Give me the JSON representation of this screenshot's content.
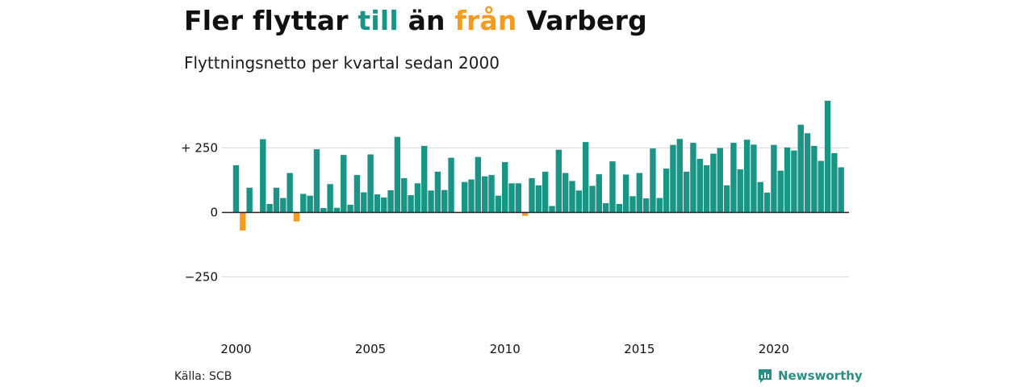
{
  "title": {
    "part1": "Fler flyttar ",
    "part2": "till",
    "part3": " än ",
    "part4": "från",
    "part5": " Varberg",
    "color_till": "#1a9485",
    "color_fran": "#f39c1f"
  },
  "subtitle": "Flyttningsnetto per kvartal sedan 2000",
  "source": "Källa: SCB",
  "brand": {
    "name": "Newsworthy",
    "icon": "newsworthy-logo-icon",
    "color": "#2a8e82"
  },
  "chart_data": {
    "type": "bar",
    "title": "Fler flyttar till än från Varberg",
    "subtitle": "Flyttningsnetto per kvartal sedan 2000",
    "xlabel": "",
    "ylabel": "",
    "start_year": 2000,
    "periods_per_year": 4,
    "ylim": [
      -330,
      440
    ],
    "yticks": [
      {
        "value": 250,
        "label": "+ 250"
      },
      {
        "value": 0,
        "label": "0"
      },
      {
        "value": -250,
        "label": "−250"
      }
    ],
    "xticks": [
      {
        "value": 2000,
        "label": "2000"
      },
      {
        "value": 2005,
        "label": "2005"
      },
      {
        "value": 2010,
        "label": "2010"
      },
      {
        "value": 2015,
        "label": "2015"
      },
      {
        "value": 2020,
        "label": "2020"
      }
    ],
    "grid": true,
    "positive_color": "#1a9485",
    "negative_color": "#f39c1f",
    "values": [
      183,
      -70,
      96,
      0,
      284,
      33,
      96,
      56,
      153,
      -35,
      72,
      65,
      245,
      17,
      110,
      18,
      223,
      30,
      145,
      78,
      225,
      70,
      58,
      86,
      293,
      133,
      67,
      113,
      258,
      85,
      158,
      87,
      212,
      0,
      118,
      128,
      215,
      140,
      145,
      65,
      195,
      113,
      113,
      -13,
      133,
      105,
      158,
      25,
      243,
      153,
      122,
      85,
      273,
      103,
      148,
      36,
      198,
      33,
      147,
      63,
      153,
      55,
      248,
      56,
      170,
      262,
      285,
      158,
      270,
      208,
      183,
      228,
      250,
      105,
      270,
      167,
      282,
      263,
      118,
      77,
      262,
      162,
      252,
      240,
      340,
      307,
      258,
      200,
      433,
      230,
      175
    ]
  }
}
